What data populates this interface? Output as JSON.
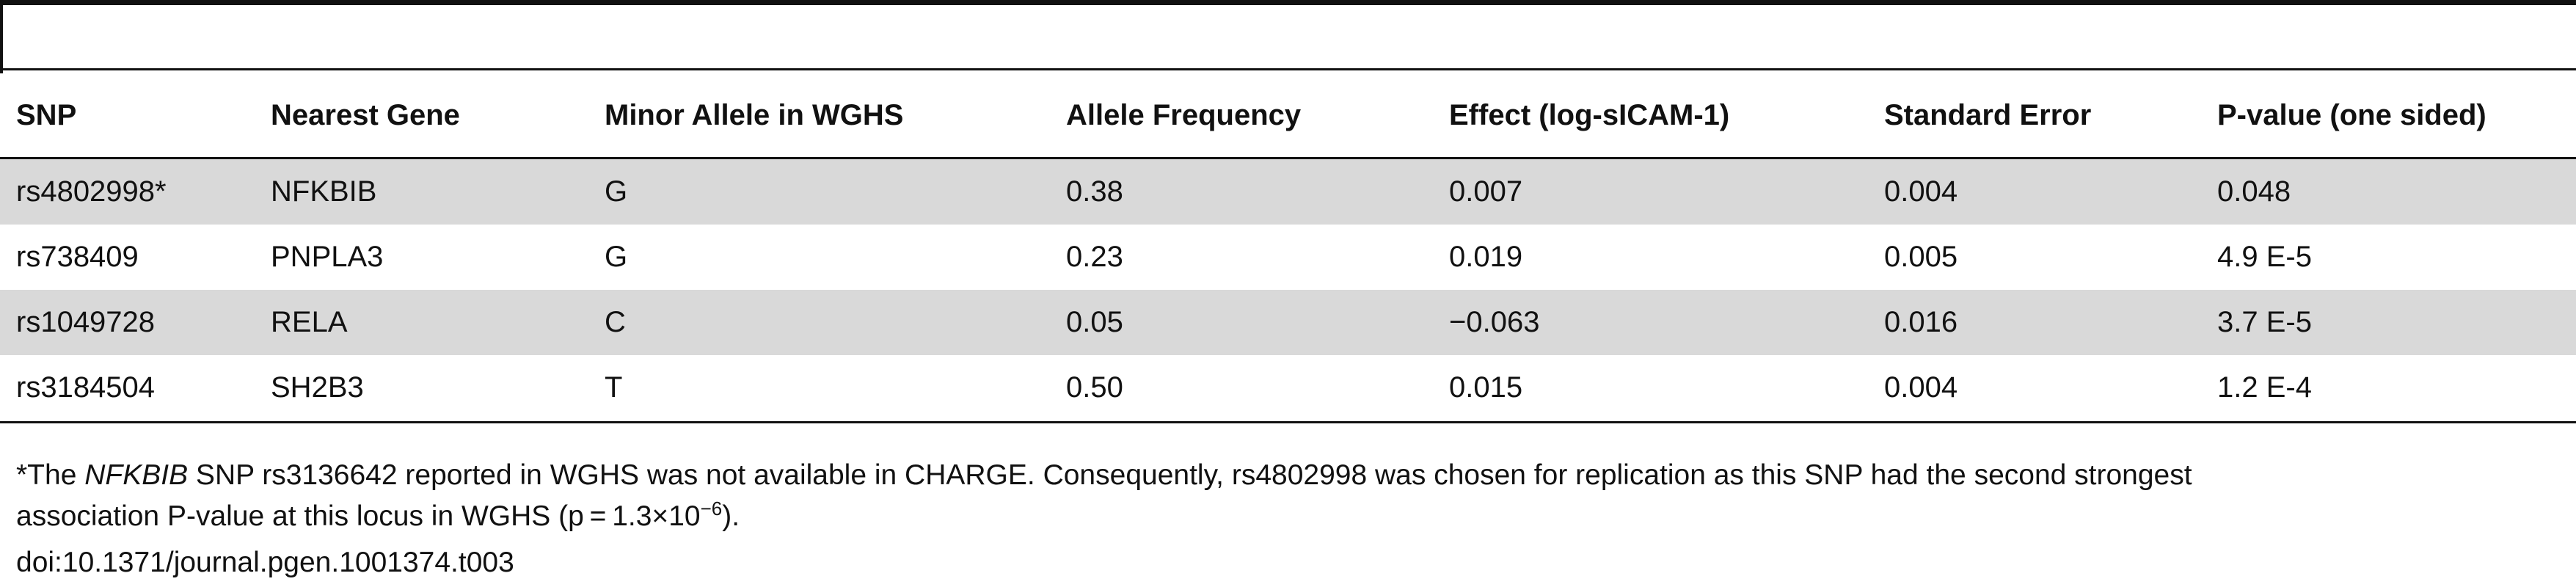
{
  "table": {
    "columns": [
      "SNP",
      "Nearest Gene",
      "Minor Allele in WGHS",
      "Allele Frequency",
      "Effect (log-sICAM-1)",
      "Standard Error",
      "P-value (one sided)"
    ],
    "rows": [
      [
        "rs4802998*",
        "NFKBIB",
        "G",
        "0.38",
        "0.007",
        "0.004",
        "0.048"
      ],
      [
        "rs738409",
        "PNPLA3",
        "G",
        "0.23",
        "0.019",
        "0.005",
        "4.9 E-5"
      ],
      [
        "rs1049728",
        "RELA",
        "C",
        "0.05",
        "−0.063",
        "0.016",
        "3.7 E-5"
      ],
      [
        "rs3184504",
        "SH2B3",
        "T",
        "0.50",
        "0.015",
        "0.004",
        "1.2 E-4"
      ]
    ]
  },
  "footnote": {
    "line1": [
      "*The ",
      "NFKBIB",
      " SNP rs3136642 reported in WGHS was not available in CHARGE. Consequently, rs4802998 was chosen for replication as this SNP had the second strongest"
    ],
    "line2": [
      "association P-value at this locus in WGHS (p = 1.3×10",
      "−6",
      ")."
    ]
  },
  "doi": "doi:10.1371/journal.pgen.1001374.t003"
}
